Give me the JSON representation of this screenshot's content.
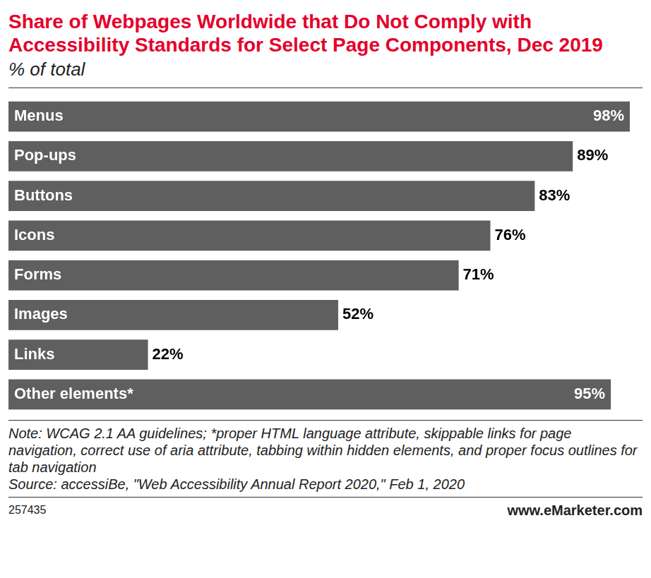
{
  "chart_data": {
    "type": "bar",
    "title": "Share of Webpages Worldwide that Do Not Comply with Accessibility Standards for Select Page Components, Dec 2019",
    "subtitle": "% of total",
    "categories": [
      "Menus",
      "Pop-ups",
      "Buttons",
      "Icons",
      "Forms",
      "Images",
      "Links",
      "Other elements*"
    ],
    "values": [
      98,
      89,
      83,
      76,
      71,
      52,
      22,
      95
    ],
    "value_labels": [
      "98%",
      "89%",
      "83%",
      "76%",
      "71%",
      "52%",
      "22%",
      "95%"
    ],
    "color": "#5f5f5f",
    "orientation": "horizontal",
    "data_labels": true,
    "tick_labels": false,
    "grid": false,
    "note": "Note: WCAG 2.1 AA guidelines; *proper HTML language attribute, skippable links for page navigation, correct use of aria attribute, tabbing within hidden elements, and proper focus outlines for tab navigation",
    "source": "Source: accessiBe, \"Web Accessibility Annual Report 2020,\" Feb 1, 2020",
    "chart_id": "257435",
    "credit": "www.eMarketer.com"
  }
}
